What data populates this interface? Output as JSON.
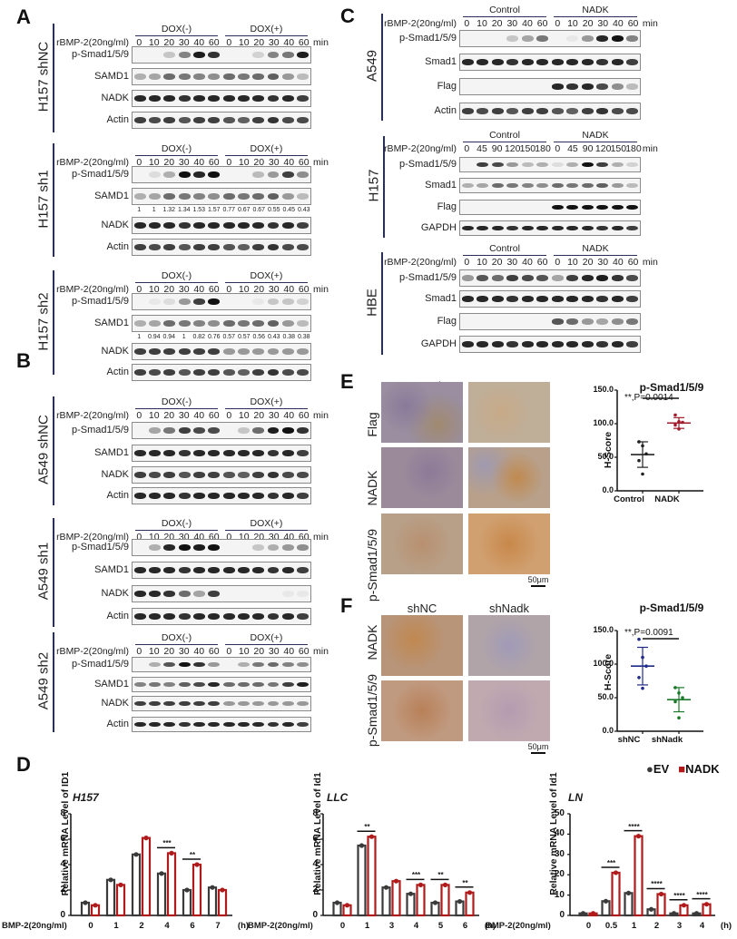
{
  "panels": {
    "A": "A",
    "B": "B",
    "C": "C",
    "D": "D",
    "E": "E",
    "F": "F"
  },
  "common": {
    "treatment_label": "rBMP-2(20ng/ml)",
    "min": "min",
    "dox_neg": "DOX(-)",
    "dox_pos": "DOX(+)",
    "control": "Control",
    "nadk": "NADK",
    "times_short": [
      "0",
      "10",
      "20",
      "30",
      "40",
      "60",
      "0",
      "10",
      "20",
      "30",
      "40",
      "60"
    ],
    "times_long": [
      "0",
      "45",
      "90",
      "120",
      "150",
      "180",
      "0",
      "45",
      "90",
      "120",
      "150",
      "180"
    ]
  },
  "panel_A": {
    "groups": [
      {
        "cell_line": "H157 shNC",
        "rows": [
          "p-Smad1/5/9",
          "SAMD1",
          "NADK",
          "Actin"
        ]
      },
      {
        "cell_line": "H157 sh1",
        "rows": [
          "p-Smad1/5/9",
          "SAMD1",
          "NADK",
          "Actin"
        ],
        "samd1_quant": [
          "1",
          "1",
          "1.32",
          "1.34",
          "1.53",
          "1.57",
          "0.77",
          "0.67",
          "0.67",
          "0.55",
          "0.45",
          "0.43"
        ]
      },
      {
        "cell_line": "H157 sh2",
        "rows": [
          "p-Smad1/5/9",
          "SAMD1",
          "NADK",
          "Actin"
        ],
        "samd1_quant": [
          "1",
          "0.94",
          "0.94",
          "1",
          "0.82",
          "0.76",
          "0.57",
          "0.57",
          "0.56",
          "0.43",
          "0.38",
          "0.38"
        ]
      }
    ]
  },
  "panel_B": {
    "groups": [
      {
        "cell_line": "A549 shNC",
        "rows": [
          "p-Smad1/5/9",
          "SAMD1",
          "NADK",
          "Actin"
        ]
      },
      {
        "cell_line": "A549 sh1",
        "rows": [
          "p-Smad1/5/9",
          "SAMD1",
          "NADK",
          "Actin"
        ]
      },
      {
        "cell_line": "A549 sh2",
        "rows": [
          "p-Smad1/5/9",
          "SAMD1",
          "NADK",
          "Actin"
        ]
      }
    ]
  },
  "panel_C": {
    "groups": [
      {
        "cell_line": "A549",
        "rows": [
          "p-Smad1/5/9",
          "Smad1",
          "Flag",
          "Actin"
        ]
      },
      {
        "cell_line": "H157",
        "rows": [
          "p-Smad1/5/9",
          "Smad1",
          "Flag",
          "GAPDH"
        ]
      },
      {
        "cell_line": "HBE",
        "rows": [
          "p-Smad1/5/9",
          "Smad1",
          "Flag",
          "GAPDH"
        ]
      }
    ]
  },
  "panel_E": {
    "col_headers": [
      "Control",
      "NADK"
    ],
    "row_labels": [
      "Flag",
      "NADK",
      "p-Smad1/5/9"
    ],
    "scale_bar": "50μm"
  },
  "panel_F": {
    "col_headers": [
      "shNC",
      "shNadk"
    ],
    "row_labels": [
      "NADK",
      "p-Smad1/5/9"
    ],
    "scale_bar": "50μm"
  },
  "panel_D": {
    "legend": {
      "ev": "EV",
      "nadk": "NADK"
    },
    "x_prefix": "BMP-2(20ng/ml)",
    "x_unit": "(h)",
    "colors": {
      "ev": "#3a3a3a",
      "nadk": "#b01a1a"
    }
  },
  "chart_data": [
    {
      "type": "scatter",
      "title": "p-Smad1/5/9",
      "panel": "E",
      "categories": [
        "Control",
        "NADK"
      ],
      "ylabel": "H-Score",
      "ylim": [
        0,
        150
      ],
      "yticks": [
        "0.0",
        "50.0",
        "100.0",
        "150.0"
      ],
      "series": [
        {
          "name": "Control",
          "color": "#222222",
          "points": [
            73,
            67,
            55,
            45,
            25
          ],
          "mean": 54,
          "sd": 19
        },
        {
          "name": "NADK",
          "color": "#a01a2a",
          "points": [
            113,
            103,
            102,
            98,
            92
          ],
          "mean": 101,
          "sd": 8
        }
      ],
      "annotation": "**,P=0.0014"
    },
    {
      "type": "scatter",
      "title": "p-Smad1/5/9",
      "panel": "F",
      "categories": [
        "shNC",
        "shNadk"
      ],
      "ylabel": "H-Score",
      "ylim": [
        0,
        150
      ],
      "yticks": [
        "0.0",
        "50.0",
        "100.0",
        "150.0"
      ],
      "series": [
        {
          "name": "shNC",
          "color": "#1f2a8a",
          "points": [
            137,
            110,
            97,
            80,
            64
          ],
          "mean": 97,
          "sd": 28
        },
        {
          "name": "shNadk",
          "color": "#1a7a2a",
          "points": [
            65,
            57,
            50,
            44,
            20
          ],
          "mean": 47,
          "sd": 18
        }
      ],
      "annotation": "**,P=0.0091"
    },
    {
      "type": "bar",
      "title": "H157",
      "panel": "D",
      "ylabel": "Relative mRNA Level of ID1",
      "xlabel": "BMP-2(20ng/ml)",
      "categories": [
        "0",
        "1",
        "2",
        "4",
        "6",
        "7"
      ],
      "ylim": [
        0,
        8
      ],
      "yticks": [
        "0",
        "2",
        "4",
        "6",
        "8"
      ],
      "series": [
        {
          "name": "EV",
          "values": [
            1.0,
            2.8,
            4.8,
            3.3,
            2.0,
            2.2
          ]
        },
        {
          "name": "NADK",
          "values": [
            0.8,
            2.4,
            6.1,
            4.9,
            4.0,
            2.0
          ]
        }
      ],
      "significance": [
        {
          "category": "4",
          "label": "***"
        },
        {
          "category": "6",
          "label": "**"
        }
      ]
    },
    {
      "type": "bar",
      "title": "LLC",
      "panel": "D",
      "ylabel": "Relative mRNA Level of Id1",
      "xlabel": "BMP-2(20ng/ml)",
      "categories": [
        "0",
        "1",
        "3",
        "4",
        "5",
        "6"
      ],
      "ylim": [
        0,
        8
      ],
      "yticks": [
        "0",
        "2",
        "4",
        "6",
        "8"
      ],
      "series": [
        {
          "name": "EV",
          "values": [
            1.0,
            5.5,
            2.2,
            1.7,
            1.0,
            1.1
          ]
        },
        {
          "name": "NADK",
          "values": [
            0.8,
            6.2,
            2.7,
            2.4,
            2.4,
            1.8
          ]
        }
      ],
      "significance": [
        {
          "category": "1",
          "label": "**"
        },
        {
          "category": "4",
          "label": "***"
        },
        {
          "category": "5",
          "label": "**"
        },
        {
          "category": "6",
          "label": "**"
        }
      ]
    },
    {
      "type": "bar",
      "title": "LN",
      "panel": "D",
      "ylabel": "Relative mRNA Level of Id1",
      "xlabel": "BMP-2(20ng/ml)",
      "categories": [
        "0",
        "0.5",
        "1",
        "2",
        "3",
        "4"
      ],
      "ylim": [
        0,
        50
      ],
      "yticks": [
        "0",
        "10",
        "20",
        "30",
        "40",
        "50"
      ],
      "series": [
        {
          "name": "EV",
          "values": [
            1.0,
            7.0,
            11.0,
            3.0,
            1.0,
            1.0
          ]
        },
        {
          "name": "NADK",
          "values": [
            1.0,
            21.0,
            39.0,
            10.5,
            5.0,
            5.5
          ]
        }
      ],
      "significance": [
        {
          "category": "0.5",
          "label": "***"
        },
        {
          "category": "1",
          "label": "****"
        },
        {
          "category": "2",
          "label": "****"
        },
        {
          "category": "3",
          "label": "****"
        },
        {
          "category": "4",
          "label": "****"
        }
      ]
    }
  ]
}
